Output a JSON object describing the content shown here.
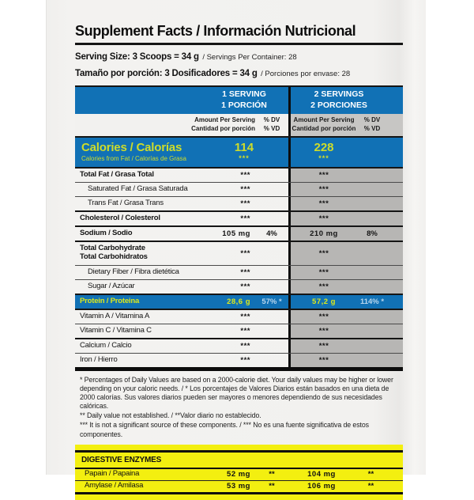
{
  "label": {
    "title": "Supplement Facts / Información Nutricional",
    "serving": {
      "line1_bold": "Serving Size: 3 Scoops = 34 g",
      "line1_rest": "/ Servings Per Container: 28",
      "line2_bold": "Tamaño por porción: 3 Dosificadores = 34 g",
      "line2_rest": "/ Porciones por envase: 28"
    },
    "columns": [
      {
        "h1": "1 SERVING",
        "h2": "1 PORCIÓN"
      },
      {
        "h1": "2 SERVINGS",
        "h2": "2 PORCIONES"
      }
    ],
    "subheader": {
      "amount_l1": "Amount Per Serving",
      "amount_l2": "Cantidad por porción",
      "dv_l1": "% DV",
      "dv_l2": "% VD"
    },
    "calories": {
      "label": "Calories / Calorías",
      "sublabel": "Calories from Fat / Calorías de Grasa",
      "v1": "114",
      "s1": "***",
      "v2": "228",
      "s2": "***"
    },
    "rows": [
      {
        "l1": "Total Fat / Grasa Total",
        "a1": "***",
        "d1": "",
        "a2": "***",
        "d2": ""
      },
      {
        "l1": "Saturated Fat / Grasa Saturada",
        "a1": "***",
        "d1": "",
        "a2": "***",
        "d2": ""
      },
      {
        "l1": "Trans Fat / Grasa Trans",
        "a1": "***",
        "d1": "",
        "a2": "***",
        "d2": ""
      },
      {
        "l1": "Cholesterol / Colesterol",
        "a1": "***",
        "d1": "",
        "a2": "***",
        "d2": ""
      },
      {
        "l1": "Sodium / Sodio",
        "a1": "105 mg",
        "d1": "4%",
        "a2": "210 mg",
        "d2": "8%"
      },
      {
        "l1": "Total Carbohydrate",
        "l2": "Total Carbohidratos",
        "a1": "***",
        "d1": "",
        "a2": "***",
        "d2": ""
      },
      {
        "l1": "Dietary Fiber / Fibra dietética",
        "a1": "***",
        "d1": "",
        "a2": "***",
        "d2": ""
      },
      {
        "l1": "Sugar / Azúcar",
        "a1": "***",
        "d1": "",
        "a2": "***",
        "d2": ""
      },
      {
        "l1": "Protein / Proteina",
        "a1": "28,6 g",
        "d1": "57% *",
        "a2": "57,2 g",
        "d2": "114% *"
      },
      {
        "l1": "Vitamin A / Vitamina A",
        "a1": "***",
        "d1": "",
        "a2": "***",
        "d2": ""
      },
      {
        "l1": "Vitamin C / Vitamina C",
        "a1": "***",
        "d1": "",
        "a2": "***",
        "d2": ""
      },
      {
        "l1": "Calcium / Calcio",
        "a1": "***",
        "d1": "",
        "a2": "***",
        "d2": ""
      },
      {
        "l1": "Iron / Hierro",
        "a1": "***",
        "d1": "",
        "a2": "***",
        "d2": ""
      }
    ],
    "footnotes": [
      "* Percentages of Daily Values are based on a 2000-calorie diet. Your daily values may be higher or lower depending on your caloric needs. / * Los porcentajes de Valores Diarios están basados en una dieta de 2000 calorías. Sus valores diarios pueden ser mayores o menores dependiendo de sus necesidades calóricas.",
      "** Daily value not established. / **Valor diario no establecido.",
      "*** It is not a significant source of these components. / *** No es una fuente significativa de estos componentes."
    ],
    "enzymes": {
      "header": "DIGESTIVE ENZYMES",
      "rows": [
        {
          "label": "Papain / Papaina",
          "a1": "52 mg",
          "d1": "**",
          "a2": "104 mg",
          "d2": "**"
        },
        {
          "label": "Amylase / Amilasa",
          "a1": "53 mg",
          "d1": "**",
          "a2": "106 mg",
          "d2": "**"
        }
      ]
    },
    "colors": {
      "blue": "#1171b5",
      "yellow": "#f3ef10",
      "accent_text": "#cedc2a",
      "right_col": "#b7b6b4",
      "right_subhdr": "#c7c6c4",
      "protein_dv": "#b9d7ee"
    }
  }
}
